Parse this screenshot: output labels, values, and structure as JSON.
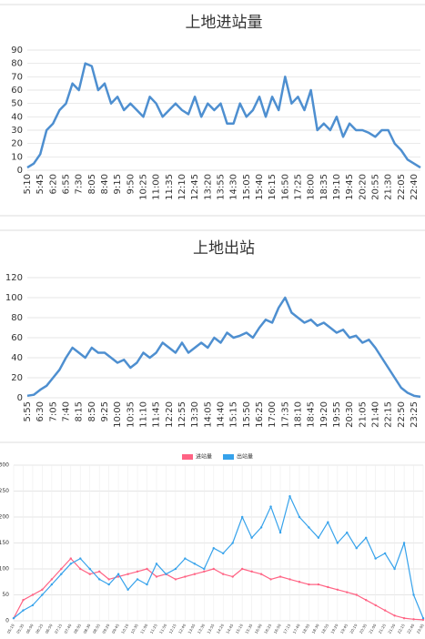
{
  "chart_data": [
    {
      "type": "line",
      "title": "上地进站量",
      "color": "#4e8fd0",
      "grid": true,
      "categories": [
        "5:10",
        null,
        "5:45",
        null,
        "6:20",
        null,
        "6:55",
        null,
        "7:30",
        null,
        "8:05",
        null,
        "8:40",
        null,
        "9:15",
        null,
        "9:50",
        null,
        "10:25",
        null,
        "11:00",
        null,
        "11:35",
        null,
        "12:10",
        null,
        "12:45",
        null,
        "13:20",
        null,
        "13:55",
        null,
        "14:30",
        null,
        "15:05",
        null,
        "15:40",
        null,
        "16:15",
        null,
        "16:50",
        null,
        "17:25",
        null,
        "18:00",
        null,
        "18:35",
        null,
        "19:10",
        null,
        "19:45",
        null,
        "20:20",
        null,
        "20:55",
        null,
        "21:30",
        null,
        "22:05",
        null,
        "22:40",
        null
      ],
      "values": [
        2,
        5,
        12,
        30,
        35,
        45,
        50,
        65,
        60,
        80,
        78,
        60,
        65,
        50,
        55,
        45,
        50,
        45,
        40,
        55,
        50,
        40,
        45,
        50,
        45,
        42,
        55,
        40,
        50,
        45,
        50,
        35,
        35,
        50,
        40,
        45,
        55,
        40,
        55,
        45,
        70,
        50,
        55,
        45,
        60,
        30,
        35,
        30,
        40,
        25,
        35,
        30,
        30,
        28,
        25,
        30,
        30,
        20,
        15,
        8,
        5,
        2
      ],
      "ylim": [
        0,
        90
      ],
      "yticks": [
        0,
        10,
        20,
        30,
        40,
        50,
        60,
        70,
        80,
        90
      ]
    },
    {
      "type": "line",
      "title": "上地出站",
      "color": "#4e8fd0",
      "grid": true,
      "categories": [
        "5:55",
        null,
        "6:30",
        null,
        "7:05",
        null,
        "7:40",
        null,
        "8:15",
        null,
        "8:50",
        null,
        "9:25",
        null,
        "10:00",
        null,
        "10:35",
        null,
        "11:10",
        null,
        "11:45",
        null,
        "12:20",
        null,
        "12:55",
        null,
        "13:30",
        null,
        "14:05",
        null,
        "14:40",
        null,
        "15:15",
        null,
        "15:50",
        null,
        "16:25",
        null,
        "17:00",
        null,
        "17:35",
        null,
        "18:10",
        null,
        "18:45",
        null,
        "19:20",
        null,
        "19:55",
        null,
        "20:30",
        null,
        "21:05",
        null,
        "21:40",
        null,
        "22:15",
        null,
        "22:50",
        null,
        "23:25",
        null
      ],
      "values": [
        2,
        3,
        8,
        12,
        20,
        28,
        40,
        50,
        45,
        40,
        50,
        45,
        45,
        40,
        35,
        38,
        30,
        35,
        45,
        40,
        45,
        55,
        50,
        45,
        55,
        45,
        50,
        55,
        50,
        60,
        55,
        65,
        60,
        62,
        65,
        60,
        70,
        78,
        75,
        90,
        100,
        85,
        80,
        75,
        78,
        72,
        75,
        70,
        65,
        68,
        60,
        62,
        55,
        58,
        50,
        40,
        30,
        20,
        10,
        5,
        2,
        1
      ],
      "ylim": [
        0,
        120
      ],
      "yticks": [
        0,
        20,
        40,
        60,
        80,
        100,
        120
      ]
    },
    {
      "type": "line",
      "grid": true,
      "legend": "top",
      "markers": true,
      "categories": [
        "05:10",
        "05:35",
        "06:00",
        "06:25",
        "06:50",
        "07:15",
        "07:40",
        "08:05",
        "08:30",
        "08:55",
        "09:20",
        "09:45",
        "10:10",
        "10:35",
        "11:00",
        "11:25",
        "11:50",
        "12:15",
        "12:40",
        "13:05",
        "13:30",
        "13:55",
        "14:20",
        "14:45",
        "15:10",
        "15:35",
        "16:00",
        "16:25",
        "16:50",
        "17:15",
        "17:40",
        "18:05",
        "18:30",
        "18:55",
        "19:20",
        "19:45",
        "20:10",
        "20:35",
        "21:00",
        "21:25",
        "21:50",
        "22:15",
        "22:40",
        "23:05"
      ],
      "series": [
        {
          "name": "进站量",
          "color": "#ff6384",
          "values": [
            5,
            40,
            50,
            60,
            80,
            100,
            120,
            100,
            90,
            95,
            80,
            85,
            90,
            95,
            100,
            85,
            90,
            80,
            85,
            90,
            95,
            100,
            90,
            85,
            100,
            95,
            90,
            80,
            85,
            80,
            75,
            70,
            70,
            65,
            60,
            55,
            50,
            40,
            30,
            20,
            10,
            5,
            3,
            2
          ]
        },
        {
          "name": "出站量",
          "color": "#36a2eb",
          "values": [
            5,
            20,
            30,
            50,
            70,
            90,
            110,
            120,
            100,
            80,
            70,
            90,
            60,
            80,
            70,
            110,
            90,
            100,
            120,
            110,
            100,
            140,
            130,
            150,
            200,
            160,
            180,
            220,
            170,
            240,
            200,
            180,
            160,
            190,
            150,
            170,
            140,
            160,
            120,
            130,
            100,
            150,
            50,
            5
          ]
        }
      ],
      "ylim": [
        0,
        300
      ],
      "yticks": [
        0,
        50,
        100,
        150,
        200,
        250,
        300
      ]
    }
  ]
}
